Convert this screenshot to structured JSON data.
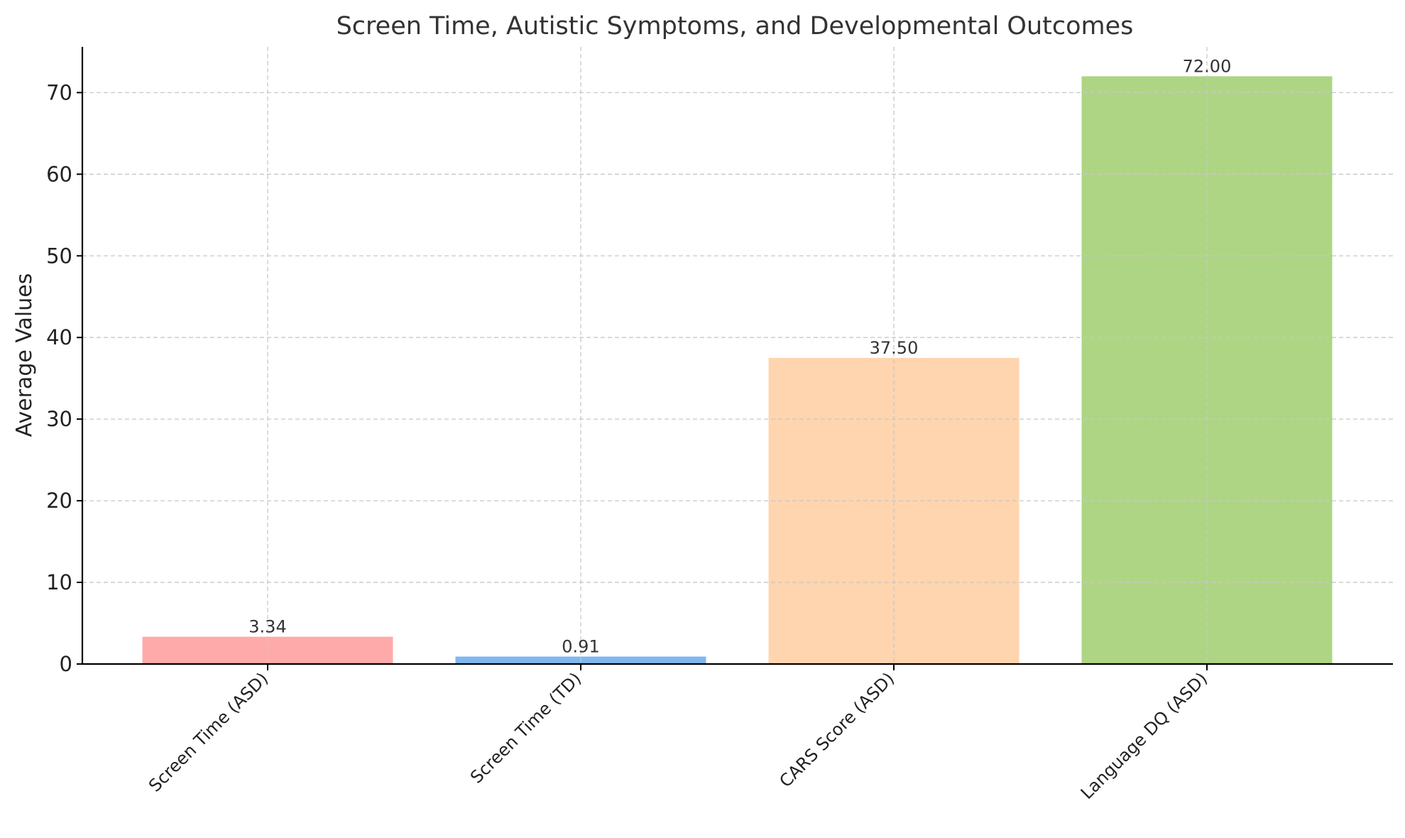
{
  "chart_data": {
    "type": "bar",
    "title": "Screen Time, Autistic Symptoms, and Developmental Outcomes",
    "xlabel": "",
    "ylabel": "Average Values",
    "categories": [
      "Screen Time (ASD)",
      "Screen Time (TD)",
      "CARS Score (ASD)",
      "Language DQ (ASD)"
    ],
    "values": [
      3.34,
      0.91,
      37.5,
      72.0
    ],
    "data_labels": [
      "3.34",
      "0.91",
      "37.50",
      "72.00"
    ],
    "colors": [
      "#ffaaaa",
      "#7fb8f0",
      "#fed5ae",
      "#aed583"
    ],
    "ylim": [
      0,
      75.6
    ],
    "yticks": [
      0,
      10,
      20,
      30,
      40,
      50,
      60,
      70
    ],
    "grid": true
  }
}
